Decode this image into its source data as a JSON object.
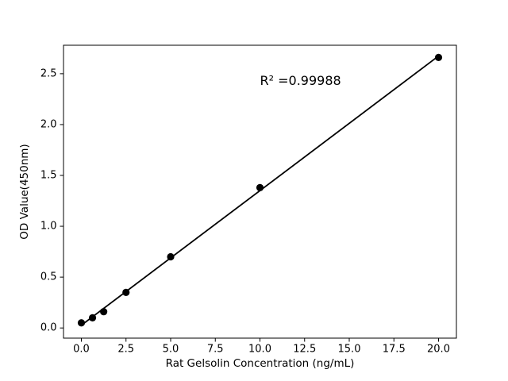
{
  "chart_data": {
    "type": "scatter",
    "title": "",
    "xlabel": "Rat Gelsolin Concentration (ng/mL)",
    "ylabel": "OD Value(450nm)",
    "x": [
      0,
      0.625,
      1.25,
      2.5,
      5,
      10,
      20
    ],
    "y": [
      0.05,
      0.1,
      0.16,
      0.35,
      0.7,
      1.38,
      2.66
    ],
    "fit_line": {
      "x": [
        0,
        20
      ],
      "y": [
        0.027,
        2.674
      ]
    },
    "annotation": {
      "text": "R² =0.99988",
      "x": 10.0,
      "y": 2.39
    },
    "xlim": [
      -1,
      21
    ],
    "ylim": [
      -0.1,
      2.78
    ],
    "xticks": [
      0,
      2.5,
      5,
      7.5,
      10,
      12.5,
      15,
      17.5,
      20
    ],
    "xtick_labels": [
      "0.0",
      "2.5",
      "5.0",
      "7.5",
      "10.0",
      "12.5",
      "15.0",
      "17.5",
      "20.0"
    ],
    "yticks": [
      0,
      0.5,
      1.0,
      1.5,
      2.0,
      2.5
    ],
    "ytick_labels": [
      "0.0",
      "0.5",
      "1.0",
      "1.5",
      "2.0",
      "2.5"
    ],
    "grid": false,
    "legend": "none",
    "marker_color": "#000000",
    "line_color": "#000000",
    "axis_color": "#000000",
    "text_color": "#000000",
    "background_color": "#ffffff"
  }
}
